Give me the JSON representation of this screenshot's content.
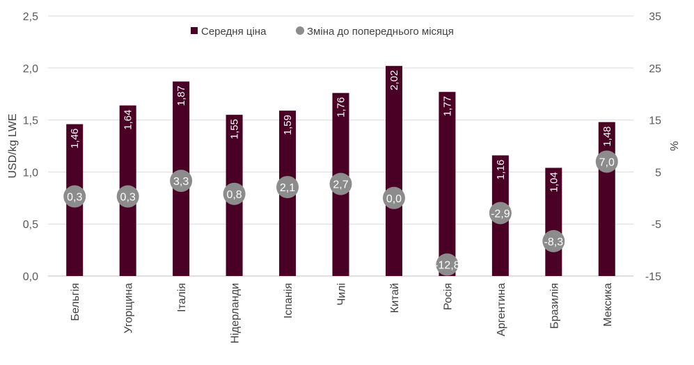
{
  "chart_data": {
    "type": "bar",
    "categories": [
      "Бельгія",
      "Угорщина",
      "Італія",
      "Нідерланди",
      "Іспанія",
      "Чилі",
      "Китай",
      "Росія",
      "Аргентина",
      "Бразилія",
      "Мексика"
    ],
    "series": [
      {
        "name": "Середня ціна",
        "type": "bar",
        "axis": "left",
        "values": [
          1.46,
          1.64,
          1.87,
          1.55,
          1.59,
          1.76,
          2.02,
          1.77,
          1.16,
          1.04,
          1.48
        ],
        "labels": [
          "1,46",
          "1,64",
          "1,87",
          "1,55",
          "1,59",
          "1,76",
          "2,02",
          "1,77",
          "1,16",
          "1,04",
          "1,48"
        ]
      },
      {
        "name": "Зміна до попереднього місяця",
        "type": "scatter",
        "axis": "right",
        "values": [
          0.3,
          0.3,
          3.3,
          0.8,
          2.1,
          2.7,
          0.0,
          -12.8,
          -2.9,
          -8.3,
          7.0
        ],
        "labels": [
          "0,3",
          "0,3",
          "3,3",
          "0,8",
          "2,1",
          "2,7",
          "0,0",
          "-12,8",
          "-2,9",
          "-8,3",
          "7,0"
        ]
      }
    ],
    "ylabel": "USD/kg LWE",
    "ylabel_right": "%",
    "ylim": [
      0,
      2.5
    ],
    "ylim_right": [
      -15,
      35
    ],
    "yticks": [
      "0,0",
      "0,5",
      "1,0",
      "1,5",
      "2,0",
      "2,5"
    ],
    "yticks_right": [
      "-15",
      "-5",
      "5",
      "15",
      "25",
      "35"
    ],
    "grid": true,
    "legend": "top-center",
    "colors": {
      "bar": "#4a0025",
      "dot": "#8c8c8c",
      "grid": "#d9d9d9",
      "text": "#595959"
    }
  }
}
